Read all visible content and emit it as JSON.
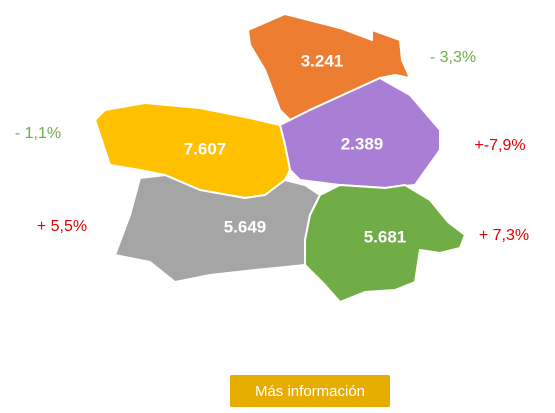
{
  "regions": [
    {
      "value": "3.241",
      "change": "- 3,3%"
    },
    {
      "value": "2.389",
      "change": "+-7,9%"
    },
    {
      "value": "7.607",
      "change": "- 1,1%"
    },
    {
      "value": "5.649",
      "change": "+ 5,5%"
    },
    {
      "value": "5.681",
      "change": "+ 7,3%"
    }
  ],
  "button": "Más información"
}
